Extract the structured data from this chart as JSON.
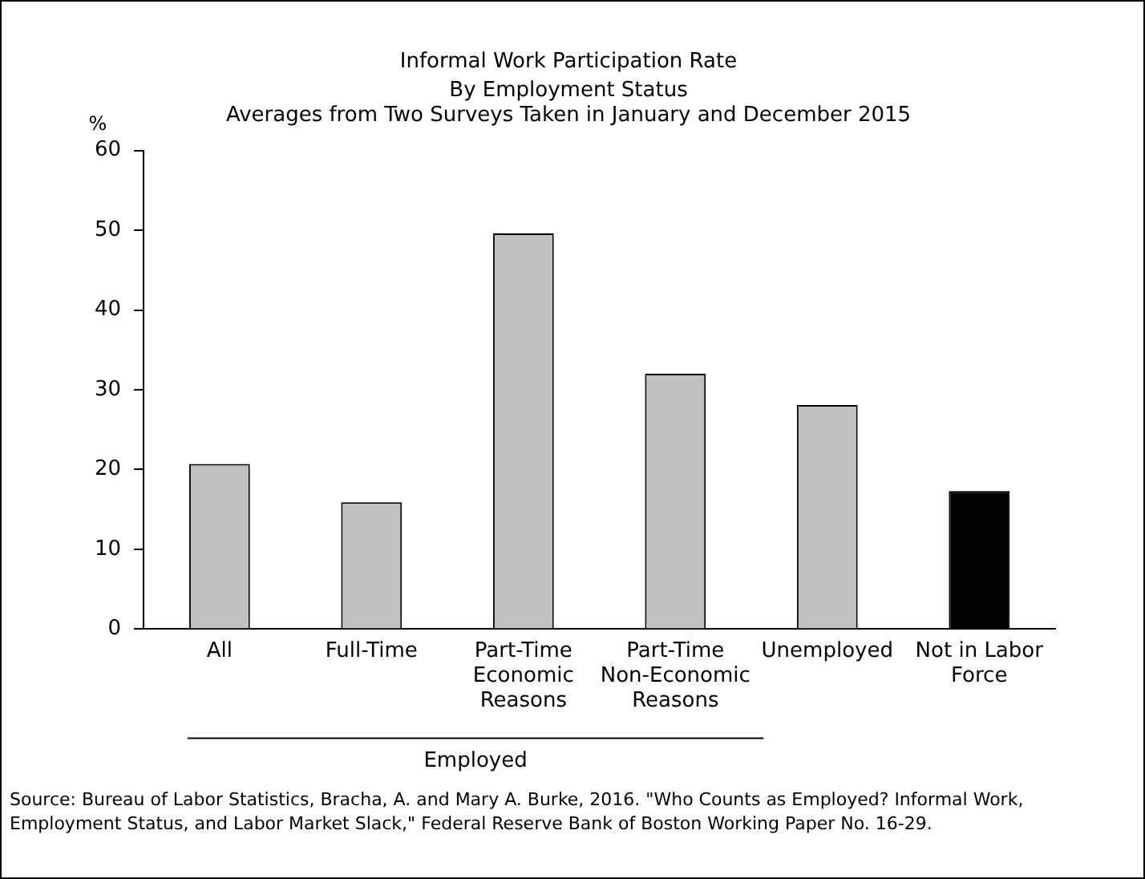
{
  "chart_data": {
    "type": "bar",
    "title": "Informal Work Participation Rate",
    "subtitle": "By Employment Status\nAverages from Two Surveys Taken in January and December 2015",
    "ylabel": "%",
    "xlabel": "Employed",
    "categories": [
      "All",
      "Full-Time",
      "Part-Time\nEconomic\nReasons",
      "Part-Time\nNon-Economic\nReasons",
      "Unemployed",
      "Not in Labor\nForce"
    ],
    "values": [
      20.7,
      15.9,
      49.6,
      32.0,
      28.1,
      17.3
    ],
    "colors": [
      "#c0c0c0",
      "#c0c0c0",
      "#c0c0c0",
      "#c0c0c0",
      "#c0c0c0",
      "#000000"
    ],
    "ylim": [
      0,
      60
    ],
    "yticks": [
      0,
      10,
      20,
      30,
      40,
      50,
      60
    ],
    "grid": false,
    "legend": false,
    "annotations": [
      "Source: Bureau of Labor Statistics, Bracha, A. and Mary A. Burke, 2016. \"Who Counts as Employed? Informal Work, Employment Status, and Labor Market Slack,\" Federal Reserve Bank of Boston Working Paper No. 16-29."
    ]
  }
}
